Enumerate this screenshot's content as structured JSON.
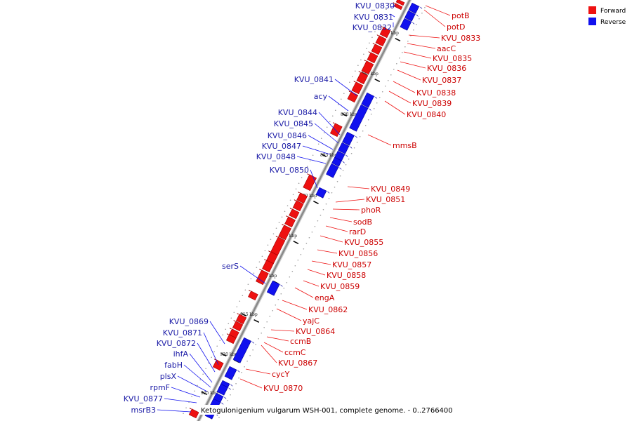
{
  "caption": "Ketogulonigenium vulgarum WSH-001, complete genome. - 0..2766400",
  "colors": {
    "forward": "#ee1111",
    "reverse": "#1111ee",
    "forward_dark": "#a00000",
    "reverse_dark": "#0000a0",
    "backbone": "#999999"
  },
  "legend": [
    {
      "label": "Forward",
      "color": "#ee1111"
    },
    {
      "label": "Reverse",
      "color": "#1111ee"
    }
  ],
  "ticks": [
    "880 kbp",
    "885 kbp",
    "890 kbp",
    "895 kbp",
    "900 kbp",
    "905 kbp",
    "910 kbp",
    "915 kbp",
    "920 kbp",
    "925 kbp"
  ],
  "reverse_genes": [
    "KVU_0830",
    "KVU_0831",
    "KVU_0832",
    "KVU_0841",
    "acy",
    "KVU_0844",
    "KVU_0845",
    "KVU_0846",
    "KVU_0847",
    "KVU_0848",
    "KVU_0850",
    "serS",
    "KVU_0869",
    "KVU_0871",
    "KVU_0872",
    "ihfA",
    "fabH",
    "plsX",
    "rpmF",
    "KVU_0877",
    "msrB3"
  ],
  "forward_genes": [
    "potB",
    "potD",
    "KVU_0833",
    "aacC",
    "KVU_0835",
    "KVU_0836",
    "KVU_0837",
    "KVU_0838",
    "KVU_0839",
    "KVU_0840",
    "mmsB",
    "KVU_0849",
    "KVU_0851",
    "phoR",
    "sodB",
    "rarD",
    "KVU_0855",
    "KVU_0856",
    "KVU_0857",
    "KVU_0858",
    "KVU_0859",
    "engA",
    "KVU_0862",
    "yajC",
    "KVU_0864",
    "ccmB",
    "ccmC",
    "KVU_0867",
    "cycY",
    "KVU_0870"
  ]
}
